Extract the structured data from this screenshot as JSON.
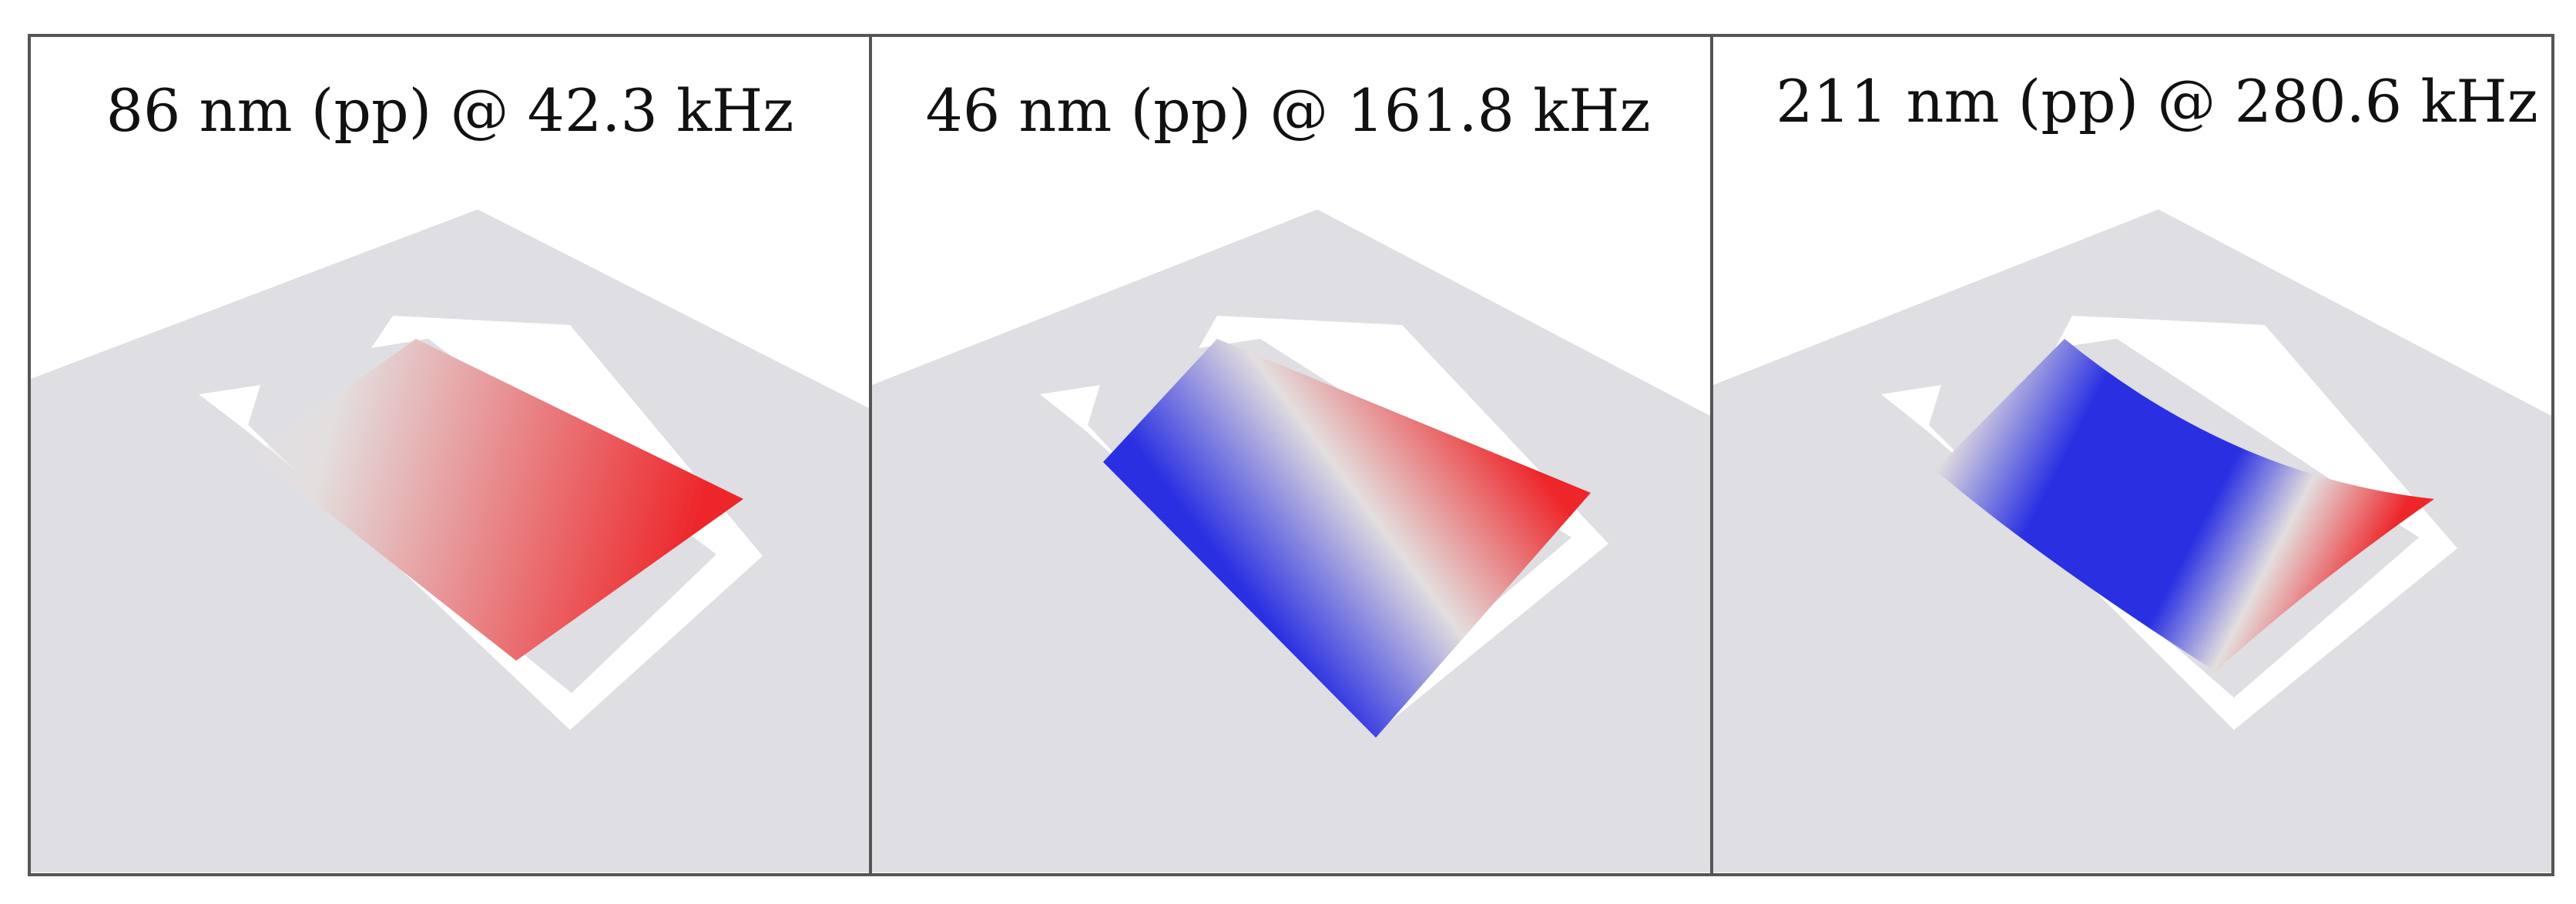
{
  "panels": [
    {
      "title": "86 nm (pp) @ 42.3 kHz",
      "mode_profile": "tilt",
      "colors": {
        "positive": "#f2262a",
        "negative": "#2a31e6",
        "neutral": "#e8e3e3"
      }
    },
    {
      "title": "46 nm (pp) @ 161.8 kHz",
      "mode_profile": "twist",
      "colors": {
        "positive": "#f2262a",
        "negative": "#2a31e6",
        "neutral": "#e8e3e3"
      }
    },
    {
      "title": "211 nm (pp) @ 280.6 kHz",
      "mode_profile": "bend",
      "colors": {
        "positive": "#f2262a",
        "negative": "#2a31e6",
        "neutral": "#e8e3e3"
      }
    }
  ],
  "colors": {
    "substrate": "#dedee3",
    "frame": "#ffffff",
    "border": "#555555"
  }
}
